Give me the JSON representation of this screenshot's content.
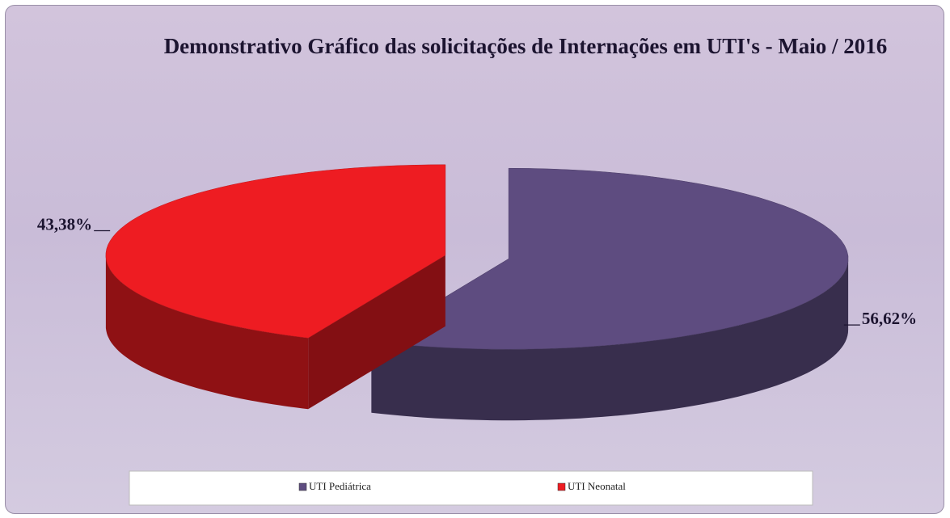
{
  "chart_data": {
    "type": "pie",
    "title": "Demonstrativo Gráfico das solicitações de Internações em UTI's - Maio / 2016",
    "categories": [
      "UTI Pediátrica",
      "UTI Neonatal"
    ],
    "values": [
      56.62,
      43.38
    ],
    "value_labels": [
      "56,62%",
      "43,38%"
    ],
    "colors": [
      "#5e4c80",
      "#ee1c22"
    ],
    "legend": "bottom"
  }
}
